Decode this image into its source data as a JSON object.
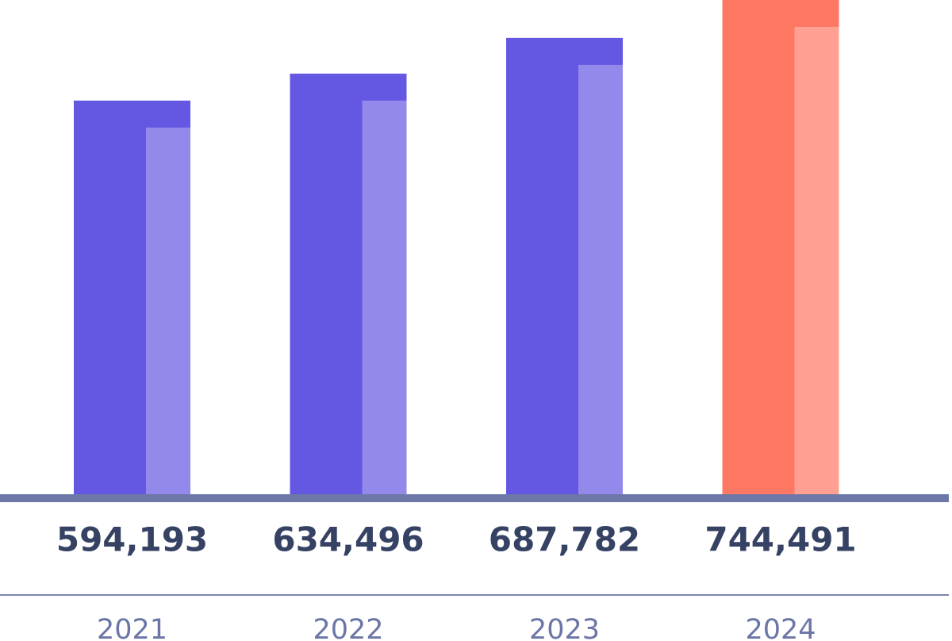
{
  "chart_data": {
    "type": "bar",
    "categories": [
      "2021",
      "2022",
      "2023",
      "2024"
    ],
    "values": [
      594193,
      634496,
      687782,
      744491
    ],
    "value_labels": [
      "594,193",
      "634,496",
      "687,782",
      "744,491"
    ],
    "colors": [
      "#6457e2",
      "#6457e2",
      "#6457e2",
      "#ff7864"
    ]
  }
}
